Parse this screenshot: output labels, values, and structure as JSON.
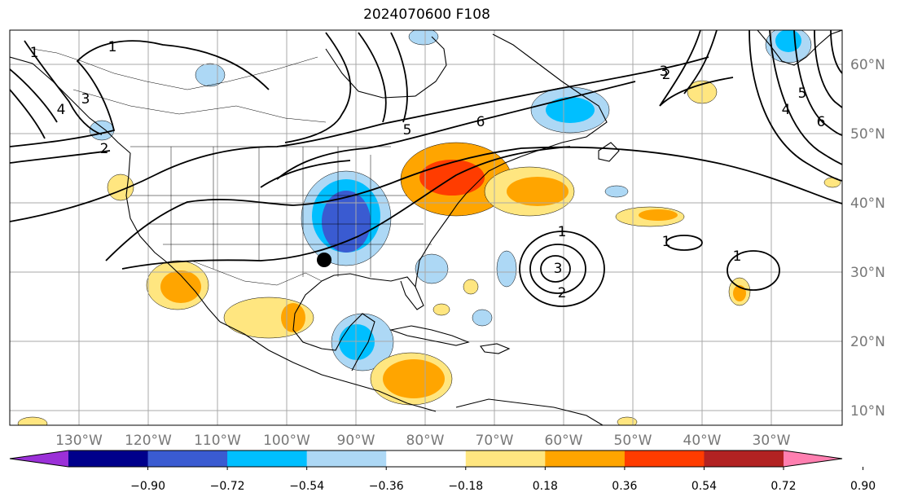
{
  "title": "2024070600 F108",
  "longitude_labels": [
    "130°W",
    "120°W",
    "110°W",
    "100°W",
    "90°W",
    "80°W",
    "70°W",
    "60°W",
    "50°W",
    "40°W",
    "30°W"
  ],
  "latitude_labels": [
    "60°N",
    "50°N",
    "40°N",
    "30°N",
    "20°N",
    "10°N"
  ],
  "colorbar": {
    "colors": [
      "#9b30d8",
      "#00008b",
      "#3a5bd1",
      "#00bfff",
      "#add8f5",
      "#ffffff",
      "#ffe680",
      "#ffa500",
      "#ff3c00",
      "#b22222",
      "#ff7fb0"
    ],
    "tick_labels": [
      "−0.90",
      "−0.72",
      "−0.54",
      "−0.36",
      "−0.18",
      "0.18",
      "0.36",
      "0.54",
      "0.72",
      "0.90"
    ]
  },
  "contour_labels": [
    "1",
    "2",
    "3",
    "4",
    "5",
    "6",
    "2",
    "3",
    "4",
    "5",
    "6",
    "1",
    "2",
    "3",
    "1",
    "1",
    "1"
  ],
  "colors": {
    "grid": "#a9a9a9",
    "axis_text": "#777777",
    "contour": "#000000",
    "marker": "#000000"
  }
}
